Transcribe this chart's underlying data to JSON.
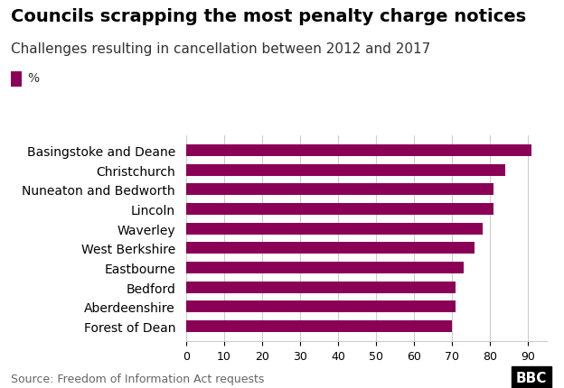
{
  "title": "Councils scrapping the most penalty charge notices",
  "subtitle": "Challenges resulting in cancellation between 2012 and 2017",
  "legend_label": "%",
  "source": "Source: Freedom of Information Act requests",
  "categories": [
    "Forest of Dean",
    "Aberdeenshire",
    "Bedford",
    "Eastbourne",
    "West Berkshire",
    "Waverley",
    "Lincoln",
    "Nuneaton and Bedworth",
    "Christchurch",
    "Basingstoke and Deane"
  ],
  "values": [
    70,
    71,
    71,
    73,
    76,
    78,
    81,
    81,
    84,
    91
  ],
  "bar_color": "#8B0057",
  "background_color": "#ffffff",
  "xlim": [
    0,
    95
  ],
  "xticks": [
    0,
    10,
    20,
    30,
    40,
    50,
    60,
    70,
    80,
    90
  ],
  "title_fontsize": 14,
  "subtitle_fontsize": 11,
  "label_fontsize": 10,
  "tick_fontsize": 9,
  "source_fontsize": 9
}
